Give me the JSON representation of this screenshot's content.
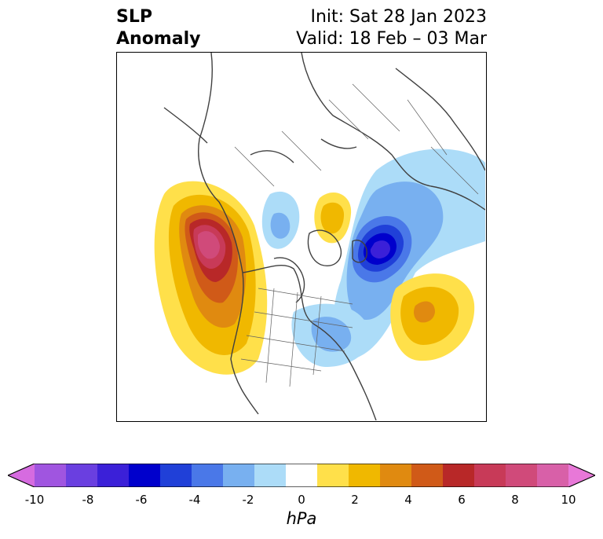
{
  "header": {
    "title_line1": "SLP",
    "title_line2": "Anomaly",
    "init_text": "Init: Sat 28 Jan 2023",
    "valid_text": "Valid: 18 Feb – 03 Mar"
  },
  "map": {
    "projection": "polar-stereographic",
    "region": "North America / Northern Hemisphere",
    "variable": "sea level pressure anomaly",
    "features": [
      {
        "type": "positive-anomaly",
        "location": "northeast Pacific / Gulf of Alaska",
        "peak_hpa": 9
      },
      {
        "type": "negative-anomaly",
        "location": "northern Europe / Scandinavia",
        "peak_hpa": -7
      },
      {
        "type": "positive-anomaly",
        "location": "central North Atlantic",
        "peak_hpa": 4
      },
      {
        "type": "positive-anomaly",
        "location": "Siberian Arctic",
        "peak_hpa": 3
      },
      {
        "type": "negative-anomaly",
        "location": "western Canada / Arctic",
        "peak_hpa": -2
      },
      {
        "type": "negative-anomaly",
        "location": "northeastern North America",
        "peak_hpa": -2
      }
    ]
  },
  "colorbar": {
    "unit": "hPa",
    "ticks": [
      "-10",
      "-8",
      "-6",
      "-4",
      "-2",
      "0",
      "2",
      "4",
      "6",
      "8",
      "10"
    ],
    "extend": "both",
    "colors": [
      "#d66be0",
      "#a055e0",
      "#6a3fe0",
      "#3b20d8",
      "#0000cc",
      "#2040d8",
      "#4a78e8",
      "#78b0f0",
      "#acdcf8",
      "#ffffff",
      "#ffe04a",
      "#f0b800",
      "#e08a10",
      "#d05a18",
      "#b82828",
      "#c83a58",
      "#d04a7a",
      "#d860a8",
      "#e878d8"
    ]
  }
}
